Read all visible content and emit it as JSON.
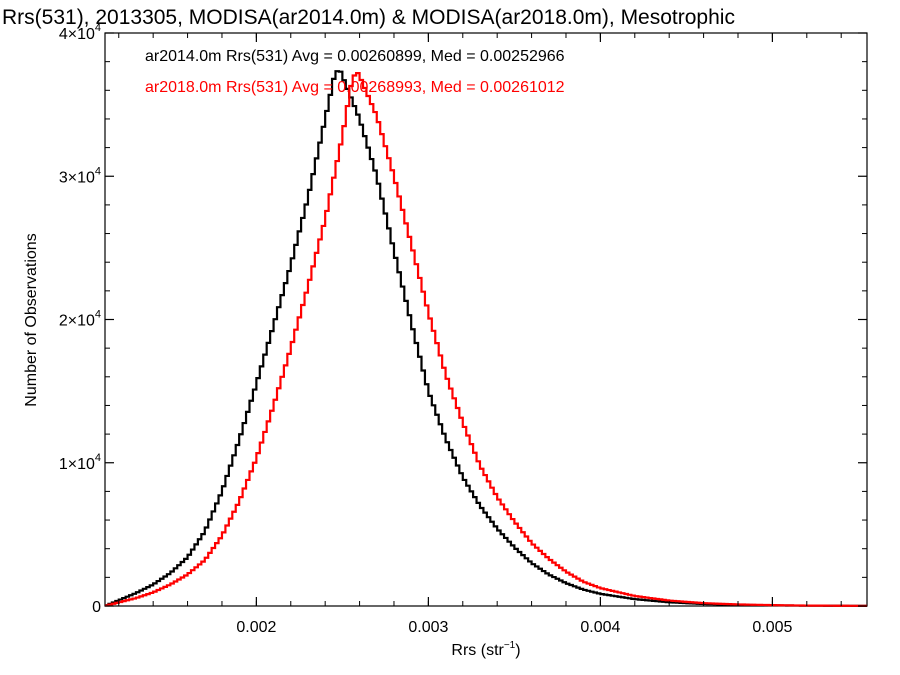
{
  "chart_data": {
    "type": "line",
    "title": "Rrs(531), 2013305, MODISA(ar2014.0m) & MODISA(ar2018.0m), Mesotrophic",
    "xlabel": "Rrs (str",
    "xlabel_sup": "−1",
    "xlabel_close": ")",
    "ylabel": "Number of Observations",
    "xlim": [
      0.00112,
      0.00555
    ],
    "ylim": [
      0,
      40000
    ],
    "grid": false,
    "legend_placement": "top-left, inside plot",
    "x_ticks": [
      {
        "value": 0.002,
        "label": "0.002"
      },
      {
        "value": 0.003,
        "label": "0.003"
      },
      {
        "value": 0.004,
        "label": "0.004"
      },
      {
        "value": 0.005,
        "label": "0.005"
      }
    ],
    "y_ticks": [
      {
        "value": 0,
        "mantissa": "0",
        "exp": ""
      },
      {
        "value": 10000,
        "mantissa": "1×10",
        "exp": "4"
      },
      {
        "value": 20000,
        "mantissa": "2×10",
        "exp": "4"
      },
      {
        "value": 30000,
        "mantissa": "3×10",
        "exp": "4"
      },
      {
        "value": 40000,
        "mantissa": "4×10",
        "exp": "4"
      }
    ],
    "series": [
      {
        "name": "ar2014.0m Rrs(531) Avg = 0.00260899, Med = 0.00252966",
        "color": "#000000",
        "points": [
          [
            0.00112,
            0
          ],
          [
            0.0012,
            400
          ],
          [
            0.0013,
            900
          ],
          [
            0.0014,
            1500
          ],
          [
            0.0015,
            2300
          ],
          [
            0.0016,
            3400
          ],
          [
            0.0017,
            5200
          ],
          [
            0.0018,
            8000
          ],
          [
            0.0019,
            11600
          ],
          [
            0.002,
            15500
          ],
          [
            0.0021,
            19600
          ],
          [
            0.0022,
            23800
          ],
          [
            0.0023,
            28500
          ],
          [
            0.0024,
            34000
          ],
          [
            0.00245,
            36800
          ],
          [
            0.00248,
            37600
          ],
          [
            0.0025,
            37000
          ],
          [
            0.0026,
            34000
          ],
          [
            0.0027,
            30000
          ],
          [
            0.0028,
            24800
          ],
          [
            0.0029,
            19800
          ],
          [
            0.003,
            15000
          ],
          [
            0.0031,
            11700
          ],
          [
            0.0032,
            9000
          ],
          [
            0.0033,
            7000
          ],
          [
            0.0034,
            5400
          ],
          [
            0.0035,
            4100
          ],
          [
            0.0036,
            3000
          ],
          [
            0.0037,
            2200
          ],
          [
            0.0038,
            1600
          ],
          [
            0.0039,
            1150
          ],
          [
            0.004,
            850
          ],
          [
            0.0042,
            480
          ],
          [
            0.0044,
            260
          ],
          [
            0.0046,
            140
          ],
          [
            0.0048,
            80
          ],
          [
            0.005,
            45
          ],
          [
            0.0052,
            25
          ],
          [
            0.0055,
            10
          ]
        ]
      },
      {
        "name": "ar2018.0m Rrs(531) Avg = 0.00268993, Med = 0.00261012",
        "color": "#ff0000",
        "points": [
          [
            0.00112,
            0
          ],
          [
            0.0012,
            250
          ],
          [
            0.0013,
            550
          ],
          [
            0.0014,
            950
          ],
          [
            0.0015,
            1500
          ],
          [
            0.0016,
            2200
          ],
          [
            0.0017,
            3200
          ],
          [
            0.0018,
            4900
          ],
          [
            0.0019,
            7300
          ],
          [
            0.002,
            10300
          ],
          [
            0.0021,
            14000
          ],
          [
            0.0022,
            18000
          ],
          [
            0.0023,
            22300
          ],
          [
            0.0024,
            27000
          ],
          [
            0.0025,
            32800
          ],
          [
            0.00255,
            36300
          ],
          [
            0.00258,
            37400
          ],
          [
            0.0026,
            37000
          ],
          [
            0.0027,
            34200
          ],
          [
            0.0028,
            30000
          ],
          [
            0.0029,
            25300
          ],
          [
            0.003,
            20500
          ],
          [
            0.0031,
            16200
          ],
          [
            0.0032,
            12800
          ],
          [
            0.0033,
            9800
          ],
          [
            0.0034,
            7600
          ],
          [
            0.0035,
            5900
          ],
          [
            0.0036,
            4400
          ],
          [
            0.0037,
            3300
          ],
          [
            0.0038,
            2400
          ],
          [
            0.0039,
            1700
          ],
          [
            0.004,
            1250
          ],
          [
            0.0042,
            700
          ],
          [
            0.0044,
            380
          ],
          [
            0.0046,
            200
          ],
          [
            0.0048,
            110
          ],
          [
            0.005,
            60
          ],
          [
            0.0052,
            30
          ],
          [
            0.0055,
            12
          ]
        ]
      }
    ]
  }
}
